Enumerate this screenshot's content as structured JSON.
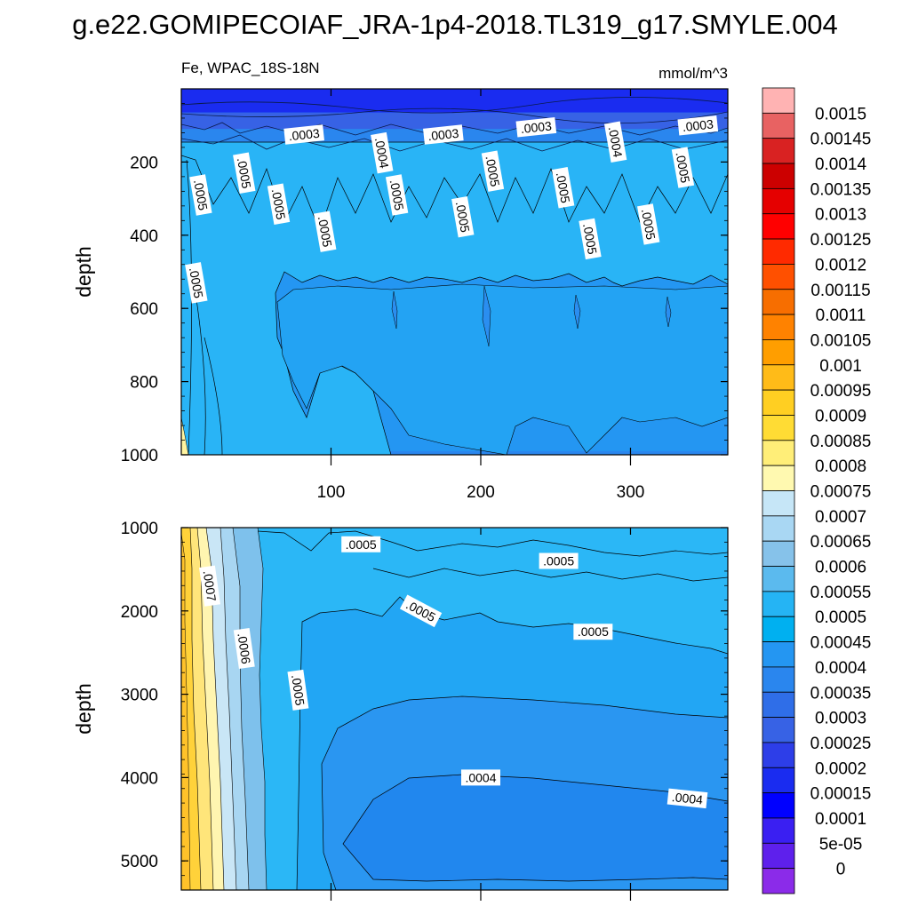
{
  "title": "g.e22.GOMIPECOIAF_JRA-1p4-2018.TL319_g17.SMYLE.004",
  "left_label": "Fe, WPAC_18S-18N",
  "right_label": "mmol/m^3",
  "chart_data": [
    {
      "type": "heatmap",
      "panel": "upper",
      "ylabel": "depth",
      "yticks": [
        200,
        400,
        600,
        800,
        1000
      ],
      "xticks": [
        100,
        200,
        300
      ],
      "xlim": [
        0,
        365
      ],
      "ylim": [
        1000,
        0
      ],
      "bands": [
        {
          "bottom": 65,
          "level": 0.0002
        },
        {
          "bottom": 110,
          "level": 0.0003
        },
        {
          "bottom": 165,
          "level": 0.0004
        },
        {
          "bottom": 310,
          "level": 0.0005
        },
        {
          "bottom": 990,
          "level": 0.00045
        },
        {
          "bottom": 1000,
          "level": 0.0004
        }
      ],
      "contour_labels": [
        {
          "text": ".0003",
          "x": 82,
          "y": 125
        },
        {
          "text": ".0003",
          "x": 175,
          "y": 125
        },
        {
          "text": ".0003",
          "x": 237,
          "y": 105
        },
        {
          "text": ".0003",
          "x": 345,
          "y": 100
        },
        {
          "text": ".0004",
          "x": 134,
          "y": 175
        },
        {
          "text": ".0004",
          "x": 290,
          "y": 145
        },
        {
          "text": ".0005",
          "x": 42,
          "y": 230
        },
        {
          "text": ".0005",
          "x": 13,
          "y": 290
        },
        {
          "text": ".0005",
          "x": 65,
          "y": 315
        },
        {
          "text": ".0005",
          "x": 96,
          "y": 390
        },
        {
          "text": ".0005",
          "x": 144,
          "y": 290
        },
        {
          "text": ".0005",
          "x": 208,
          "y": 225
        },
        {
          "text": ".0005",
          "x": 188,
          "y": 350
        },
        {
          "text": ".0005",
          "x": 255,
          "y": 270
        },
        {
          "text": ".0005",
          "x": 273,
          "y": 410
        },
        {
          "text": ".0005",
          "x": 312,
          "y": 370
        },
        {
          "text": ".0005",
          "x": 335,
          "y": 215
        },
        {
          "text": ".0005",
          "x": 10,
          "y": 530
        }
      ]
    },
    {
      "type": "heatmap",
      "panel": "lower",
      "ylabel": "depth",
      "yticks": [
        1000,
        2000,
        3000,
        4000,
        5000
      ],
      "xlim": [
        0,
        365
      ],
      "ylim": [
        5350,
        1000
      ],
      "contour_labels": [
        {
          "text": ".0005",
          "x": 120,
          "y": 1200
        },
        {
          "text": ".0005",
          "x": 252,
          "y": 1400
        },
        {
          "text": ".0005",
          "x": 160,
          "y": 2000
        },
        {
          "text": ".0005",
          "x": 275,
          "y": 2250
        },
        {
          "text": ".0007",
          "x": 19,
          "y": 1700
        },
        {
          "text": ".0006",
          "x": 42,
          "y": 2450
        },
        {
          "text": ".0005",
          "x": 78,
          "y": 2950
        },
        {
          "text": ".0004",
          "x": 200,
          "y": 4000
        },
        {
          "text": ".0004",
          "x": 338,
          "y": 4250
        }
      ]
    }
  ],
  "colorbar": {
    "labels": [
      "0.0015",
      "0.00145",
      "0.0014",
      "0.00135",
      "0.0013",
      "0.00125",
      "0.0012",
      "0.00115",
      "0.0011",
      "0.00105",
      "0.001",
      "0.00095",
      "0.0009",
      "0.00085",
      "0.0008",
      "0.00075",
      "0.0007",
      "0.00065",
      "0.0006",
      "0.00055",
      "0.0005",
      "0.00045",
      "0.0004",
      "0.00035",
      "0.0003",
      "0.00025",
      "0.0002",
      "0.00015",
      "0.0001",
      "5e-05",
      "0"
    ],
    "colors": [
      "#ffb3b3",
      "#e86262",
      "#d92222",
      "#cc0000",
      "#e50000",
      "#ff0000",
      "#ff2a00",
      "#ff5000",
      "#f76e00",
      "#ff8200",
      "#ff9e00",
      "#ffbb18",
      "#ffcf22",
      "#ffdc34",
      "#ffee78",
      "#fff9b0",
      "#c6e6f7",
      "#a9d7f3",
      "#86c2ea",
      "#5bbaee",
      "#25b4f4",
      "#00b0f0",
      "#2496f2",
      "#2a86ee",
      "#2f6ee8",
      "#3762e5",
      "#2d3ee8",
      "#1a2cf0",
      "#0000ff",
      "#3a1ff2",
      "#5e20ec",
      "#8b2be9"
    ]
  }
}
